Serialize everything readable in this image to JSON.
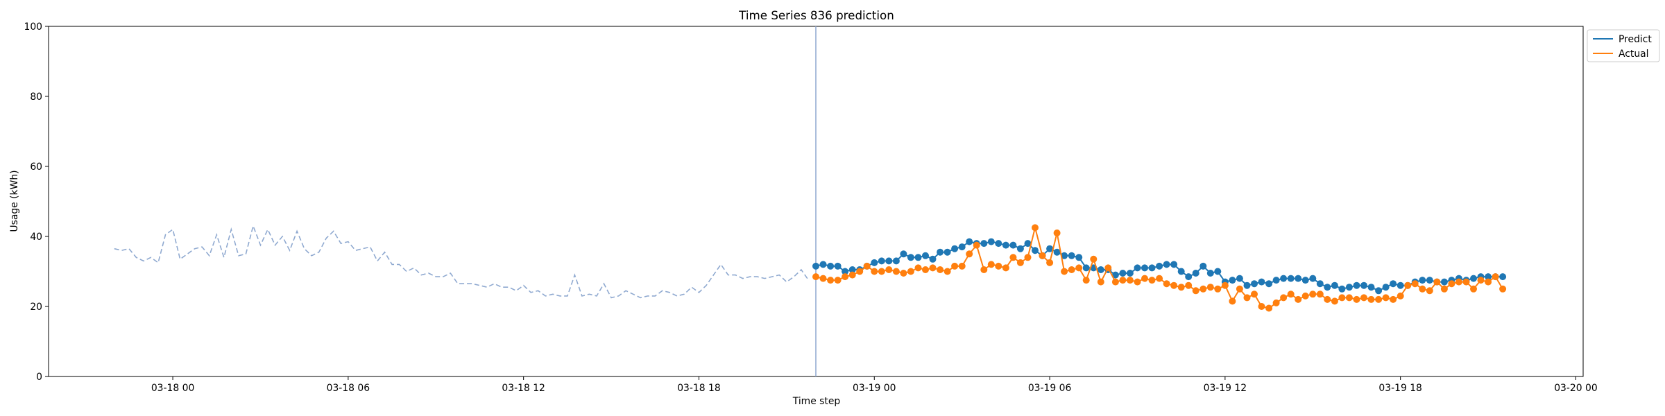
{
  "chart_data": {
    "type": "line",
    "title": "Time Series 836 prediction",
    "xlabel": "Time step",
    "ylabel": "Usage (kWh)",
    "ylim": [
      0,
      100
    ],
    "yticks": [
      0,
      20,
      40,
      60,
      80,
      100
    ],
    "xlim": [
      "03-17 19:45",
      "03-20 00:15"
    ],
    "xticks": [
      {
        "label": "03-18 00",
        "time": "03-18 00:00"
      },
      {
        "label": "03-18 06",
        "time": "03-18 06:00"
      },
      {
        "label": "03-18 12",
        "time": "03-18 12:00"
      },
      {
        "label": "03-18 18",
        "time": "03-18 18:00"
      },
      {
        "label": "03-19 00",
        "time": "03-19 00:00"
      },
      {
        "label": "03-19 06",
        "time": "03-19 06:00"
      },
      {
        "label": "03-19 12",
        "time": "03-19 12:00"
      },
      {
        "label": "03-19 18",
        "time": "03-19 18:00"
      },
      {
        "label": "03-20 00",
        "time": "03-20 00:00"
      }
    ],
    "forecast_start": "03-18 22:00",
    "legend": {
      "position": "top-right"
    },
    "grid": false,
    "history": {
      "start": "03-17 22:00",
      "step_minutes": 15,
      "color": "#8fa9d0",
      "style": "dashed",
      "values": [
        36.5,
        36,
        36.5,
        34,
        33,
        34,
        32.5,
        40.5,
        42,
        33.5,
        35,
        36.5,
        37,
        34.5,
        40.5,
        34,
        42,
        34.5,
        35,
        43,
        37.5,
        42,
        37.5,
        40,
        36,
        41.5,
        36.5,
        34.5,
        35.5,
        39.5,
        41.5,
        38,
        38.5,
        36,
        36.5,
        37,
        33,
        35.5,
        32,
        32,
        30,
        31,
        29,
        29.5,
        28.5,
        28.5,
        29.5,
        26.5,
        26.5,
        26.5,
        26,
        25.5,
        26.5,
        25.5,
        25.5,
        24.5,
        26,
        24,
        24.5,
        23,
        23.5,
        23,
        23,
        29,
        23,
        23.5,
        23,
        26.5,
        22.5,
        23,
        24.5,
        23.5,
        22.5,
        23,
        23,
        24.5,
        24,
        23,
        23.5,
        25.5,
        24,
        26,
        29,
        32,
        29,
        29,
        28,
        28.5,
        28.5,
        28,
        28.5,
        29,
        27,
        28.5,
        30.5,
        27.5
      ]
    },
    "series": [
      {
        "name": "Predict",
        "color": "#1f77b4",
        "start": "03-18 22:00",
        "step_minutes": 15,
        "values": [
          31.5,
          32,
          31.5,
          31.5,
          30,
          30.5,
          30.5,
          31.5,
          32.5,
          33,
          33,
          33,
          35,
          34,
          34,
          34.5,
          33.5,
          35.5,
          35.5,
          36.5,
          37,
          38.5,
          38,
          38,
          38.5,
          38,
          37.5,
          37.5,
          36.5,
          38,
          36,
          34.5,
          36.5,
          35.5,
          34.5,
          34.5,
          34,
          31,
          31,
          30.5,
          30.5,
          29,
          29.5,
          29.5,
          31,
          31,
          31,
          31.5,
          32,
          32,
          30,
          28.5,
          29.5,
          31.5,
          29.5,
          30,
          27,
          27.5,
          28,
          26,
          26.5,
          27,
          26.5,
          27.5,
          28,
          28,
          28,
          27.5,
          28,
          26.5,
          25.5,
          26,
          25,
          25.5,
          26,
          26,
          25.5,
          24.5,
          25.5,
          26.5,
          26,
          26,
          27,
          27.5,
          27.5,
          27,
          27,
          27.5,
          28,
          27.5,
          28,
          28.5,
          28.5,
          28.5,
          28.5
        ]
      },
      {
        "name": "Actual",
        "color": "#ff7f0e",
        "start": "03-18 22:00",
        "step_minutes": 15,
        "values": [
          28.5,
          28,
          27.5,
          27.5,
          28.5,
          29,
          30,
          31.5,
          30,
          30,
          30.5,
          30,
          29.5,
          30,
          31,
          30.5,
          31,
          30.5,
          30,
          31.5,
          31.5,
          35,
          37.5,
          30.5,
          32,
          31.5,
          31,
          34,
          32.5,
          34,
          42.5,
          34.5,
          32.5,
          41,
          30,
          30.5,
          31,
          27.5,
          33.5,
          27,
          31,
          27,
          27.5,
          27.5,
          27,
          28,
          27.5,
          28,
          26.5,
          26,
          25.5,
          26,
          24.5,
          25,
          25.5,
          25,
          26,
          21.5,
          25,
          22.5,
          23.5,
          20,
          19.5,
          21,
          22.5,
          23.5,
          22,
          23,
          23.5,
          23.5,
          22,
          21.5,
          22.5,
          22.5,
          22,
          22.5,
          22,
          22,
          22.5,
          22,
          23,
          26,
          26.5,
          25,
          24.5,
          27,
          25,
          26.5,
          27,
          27,
          25,
          27.5,
          27,
          28.5,
          25
        ]
      }
    ]
  }
}
